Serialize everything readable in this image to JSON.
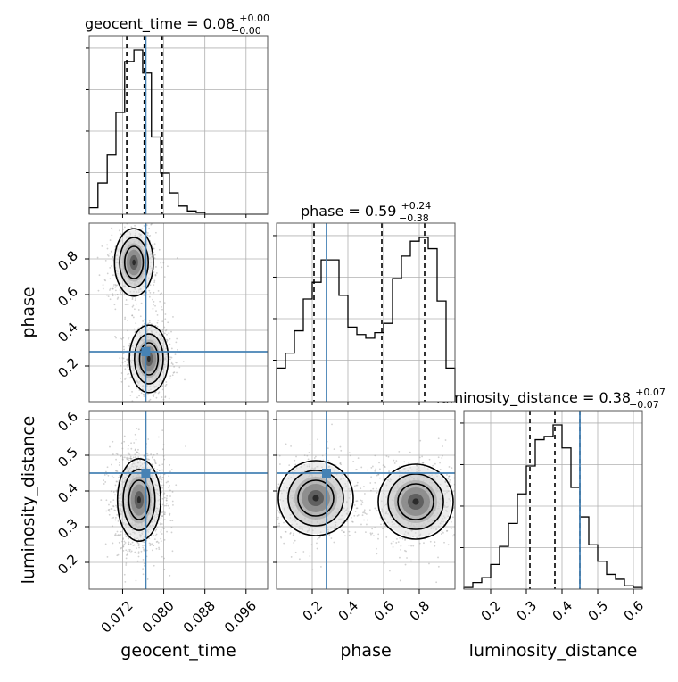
{
  "figure": {
    "panel_titles": [
      {
        "name": "geocent_time",
        "prefix": "geocent_time = ",
        "median": "0.08",
        "plus": "+0.00",
        "minus": "−0.00"
      },
      {
        "name": "phase",
        "prefix": "phase = ",
        "median": "0.59",
        "plus": "+0.24",
        "minus": "−0.38"
      },
      {
        "name": "luminosity_distance",
        "prefix": "luminosity_distance = ",
        "median": "0.38",
        "plus": "+0.07",
        "minus": "−0.07"
      }
    ],
    "axis_labels": {
      "x": [
        "geocent_time",
        "phase",
        "luminosity_distance"
      ],
      "y": [
        "phase",
        "luminosity_distance"
      ]
    },
    "colors": {
      "truth": "#4682b4",
      "hist": "#000000",
      "grid": "#b0b0b0",
      "points": "#9a9a9a"
    }
  },
  "chart_data": {
    "type": "corner",
    "parameters": [
      "geocent_time",
      "phase",
      "luminosity_distance"
    ],
    "truths": {
      "geocent_time": 0.0765,
      "phase": 0.28,
      "luminosity_distance": 0.45
    },
    "ranges": {
      "geocent_time": [
        0.0655,
        0.1002
      ],
      "phase": [
        0.0,
        1.0
      ],
      "luminosity_distance": [
        0.125,
        0.625
      ]
    },
    "ticks": {
      "geocent_time": [
        "0.072",
        "0.080",
        "0.088",
        "0.096"
      ],
      "phase": [
        "0.2",
        "0.4",
        "0.6",
        "0.8"
      ],
      "luminosity_distance": [
        "0.2",
        "0.3",
        "0.4",
        "0.5",
        "0.6"
      ]
    },
    "quantiles": {
      "geocent_time": [
        0.0728,
        0.0762,
        0.0797
      ],
      "phase": [
        0.21,
        0.59,
        0.83
      ],
      "luminosity_distance": [
        0.31,
        0.38,
        0.45
      ]
    },
    "histograms": {
      "geocent_time": {
        "edges": [
          0.0655,
          0.0672,
          0.069,
          0.0707,
          0.0724,
          0.0742,
          0.0759,
          0.0776,
          0.0794,
          0.0811,
          0.0828,
          0.0846,
          0.0863,
          0.088,
          0.0898,
          0.0915,
          0.0932,
          0.095,
          0.0967,
          0.0984,
          0.1002
        ],
        "counts": [
          0.04,
          0.19,
          0.36,
          0.62,
          0.93,
          1.0,
          0.86,
          0.47,
          0.25,
          0.13,
          0.05,
          0.02,
          0.01,
          0,
          0,
          0,
          0,
          0,
          0,
          0
        ]
      },
      "phase": {
        "edges": [
          0.0,
          0.05,
          0.1,
          0.15,
          0.2,
          0.25,
          0.3,
          0.35,
          0.4,
          0.45,
          0.5,
          0.55,
          0.6,
          0.65,
          0.7,
          0.75,
          0.8,
          0.85,
          0.9,
          0.95,
          1.0
        ],
        "counts": [
          0.18,
          0.26,
          0.38,
          0.55,
          0.64,
          0.76,
          0.76,
          0.57,
          0.4,
          0.36,
          0.34,
          0.37,
          0.42,
          0.66,
          0.78,
          0.86,
          0.88,
          0.82,
          0.54,
          0.18
        ]
      },
      "luminosity_distance": {
        "edges": [
          0.125,
          0.15,
          0.175,
          0.2,
          0.225,
          0.25,
          0.275,
          0.3,
          0.325,
          0.35,
          0.375,
          0.4,
          0.425,
          0.45,
          0.475,
          0.5,
          0.525,
          0.55,
          0.575,
          0.6,
          0.625
        ],
        "counts": [
          0.01,
          0.04,
          0.07,
          0.15,
          0.26,
          0.4,
          0.58,
          0.75,
          0.91,
          0.93,
          1.0,
          0.86,
          0.62,
          0.44,
          0.27,
          0.17,
          0.09,
          0.06,
          0.02,
          0.01
        ]
      }
    },
    "pair_modes": {
      "phase_vs_geocent_time": [
        {
          "x": 0.0742,
          "y": 0.78,
          "sx": 0.0018,
          "sy": 0.09,
          "w": 0.52
        },
        {
          "x": 0.0771,
          "y": 0.24,
          "sx": 0.0018,
          "sy": 0.09,
          "w": 0.48
        }
      ],
      "luminosity_distance_vs_geocent_time": [
        {
          "x": 0.0752,
          "y": 0.375,
          "sx": 0.002,
          "sy": 0.055,
          "w": 1.0
        }
      ],
      "luminosity_distance_vs_phase": [
        {
          "x": 0.22,
          "y": 0.38,
          "sx": 0.1,
          "sy": 0.05,
          "w": 0.45
        },
        {
          "x": 0.78,
          "y": 0.37,
          "sx": 0.1,
          "sy": 0.05,
          "w": 0.55
        }
      ]
    }
  }
}
